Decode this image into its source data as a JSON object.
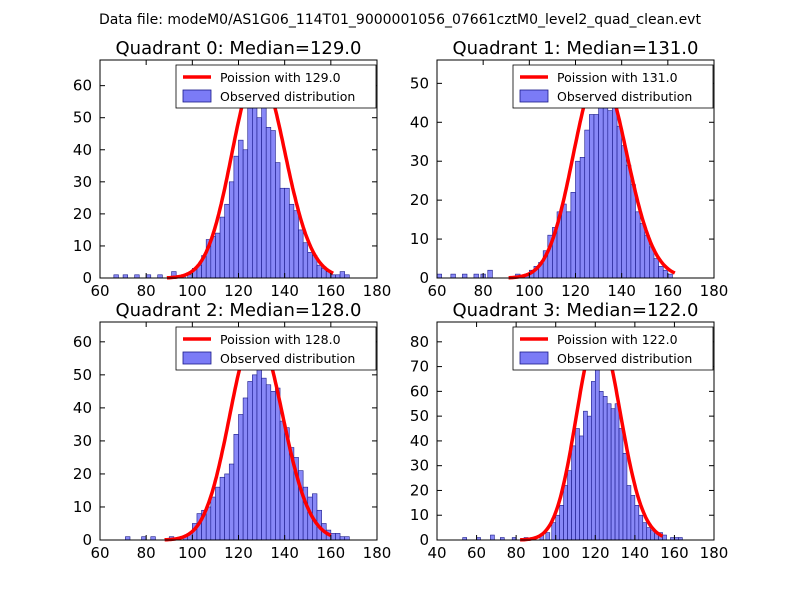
{
  "suptitle": "Data file: modeM0/AS1G06_114T01_9000001056_07661cztM0_level2_quad_clean.evt",
  "colors": {
    "bar_fill": "#7b7bf6",
    "bar_edge": "#1a1a8a",
    "curve": "#ff0000"
  },
  "chart_data": [
    {
      "type": "bar",
      "title": "Quadrant 0: Median=129.0",
      "median": 129.0,
      "poisson_amplitude": 65,
      "legend": [
        "Poission with 129.0",
        "Observed distribution"
      ],
      "xlim": [
        60,
        180
      ],
      "ylim": [
        0,
        68
      ],
      "xticks": [
        60,
        80,
        100,
        120,
        140,
        160,
        180
      ],
      "yticks": [
        0,
        10,
        20,
        30,
        40,
        50,
        60
      ],
      "bins": [
        [
          66,
          1
        ],
        [
          70,
          1
        ],
        [
          75,
          1
        ],
        [
          80,
          1
        ],
        [
          85,
          1
        ],
        [
          91,
          2
        ],
        [
          95,
          1
        ],
        [
          98,
          1
        ],
        [
          100,
          3
        ],
        [
          102,
          4
        ],
        [
          104,
          7
        ],
        [
          106,
          12
        ],
        [
          108,
          13
        ],
        [
          110,
          14
        ],
        [
          112,
          19
        ],
        [
          114,
          23
        ],
        [
          116,
          30
        ],
        [
          118,
          38
        ],
        [
          120,
          43
        ],
        [
          122,
          40
        ],
        [
          124,
          53
        ],
        [
          126,
          54
        ],
        [
          128,
          50
        ],
        [
          130,
          60
        ],
        [
          132,
          47
        ],
        [
          134,
          46
        ],
        [
          136,
          36
        ],
        [
          138,
          28
        ],
        [
          140,
          28
        ],
        [
          142,
          23
        ],
        [
          144,
          21
        ],
        [
          146,
          15
        ],
        [
          148,
          11
        ],
        [
          150,
          8
        ],
        [
          152,
          7
        ],
        [
          154,
          4
        ],
        [
          156,
          3
        ],
        [
          158,
          2
        ],
        [
          160,
          1
        ],
        [
          162,
          1
        ],
        [
          164,
          2
        ],
        [
          166,
          1
        ]
      ]
    },
    {
      "type": "bar",
      "title": "Quadrant 1: Median=131.0",
      "median": 131.0,
      "poisson_amplitude": 53,
      "legend": [
        "Poission with 131.0",
        "Observed distribution"
      ],
      "xlim": [
        60,
        180
      ],
      "ylim": [
        0,
        56
      ],
      "xticks": [
        60,
        80,
        100,
        120,
        140,
        160,
        180
      ],
      "yticks": [
        0,
        10,
        20,
        30,
        40,
        50
      ],
      "bins": [
        [
          60,
          1
        ],
        [
          66,
          1
        ],
        [
          71,
          1
        ],
        [
          76,
          1
        ],
        [
          79,
          1
        ],
        [
          82,
          2
        ],
        [
          94,
          1
        ],
        [
          98,
          1
        ],
        [
          100,
          2
        ],
        [
          102,
          3
        ],
        [
          104,
          4
        ],
        [
          106,
          7
        ],
        [
          108,
          11
        ],
        [
          110,
          13
        ],
        [
          112,
          17
        ],
        [
          114,
          19
        ],
        [
          116,
          17
        ],
        [
          118,
          22
        ],
        [
          120,
          30
        ],
        [
          122,
          31
        ],
        [
          124,
          38
        ],
        [
          126,
          42
        ],
        [
          128,
          42
        ],
        [
          130,
          45
        ],
        [
          132,
          48
        ],
        [
          134,
          43
        ],
        [
          136,
          46
        ],
        [
          138,
          39
        ],
        [
          140,
          34
        ],
        [
          142,
          29
        ],
        [
          144,
          24
        ],
        [
          146,
          17
        ],
        [
          148,
          14
        ],
        [
          150,
          11
        ],
        [
          152,
          8
        ],
        [
          154,
          5
        ],
        [
          156,
          3
        ],
        [
          158,
          2
        ],
        [
          160,
          1
        ]
      ]
    },
    {
      "type": "bar",
      "title": "Quadrant 2: Median=128.0",
      "median": 128.0,
      "poisson_amplitude": 63,
      "legend": [
        "Poission with 128.0",
        "Observed distribution"
      ],
      "xlim": [
        60,
        180
      ],
      "ylim": [
        0,
        66
      ],
      "xticks": [
        60,
        80,
        100,
        120,
        140,
        160,
        180
      ],
      "yticks": [
        0,
        10,
        20,
        30,
        40,
        50,
        60
      ],
      "bins": [
        [
          71,
          1
        ],
        [
          78,
          1
        ],
        [
          82,
          1
        ],
        [
          90,
          1
        ],
        [
          96,
          1
        ],
        [
          98,
          2
        ],
        [
          100,
          5
        ],
        [
          102,
          8
        ],
        [
          104,
          9
        ],
        [
          106,
          10
        ],
        [
          108,
          13
        ],
        [
          110,
          16
        ],
        [
          112,
          19
        ],
        [
          114,
          20
        ],
        [
          116,
          23
        ],
        [
          118,
          32
        ],
        [
          120,
          38
        ],
        [
          122,
          43
        ],
        [
          124,
          48
        ],
        [
          126,
          50
        ],
        [
          128,
          56
        ],
        [
          130,
          49
        ],
        [
          132,
          47
        ],
        [
          134,
          45
        ],
        [
          136,
          46
        ],
        [
          138,
          36
        ],
        [
          140,
          34
        ],
        [
          142,
          28
        ],
        [
          144,
          25
        ],
        [
          146,
          21
        ],
        [
          148,
          16
        ],
        [
          150,
          13
        ],
        [
          152,
          14
        ],
        [
          154,
          9
        ],
        [
          156,
          5
        ],
        [
          158,
          3
        ],
        [
          160,
          2
        ],
        [
          162,
          2
        ],
        [
          164,
          1
        ],
        [
          166,
          1
        ]
      ]
    },
    {
      "type": "bar",
      "title": "Quadrant 3: Median=122.0",
      "median": 122.0,
      "poisson_amplitude": 84,
      "legend": [
        "Poission with 122.0",
        "Observed distribution"
      ],
      "xlim": [
        40,
        180
      ],
      "ylim": [
        0,
        88
      ],
      "xticks": [
        40,
        60,
        80,
        100,
        120,
        140,
        160,
        180
      ],
      "yticks": [
        0,
        10,
        20,
        30,
        40,
        50,
        60,
        70,
        80
      ],
      "bins": [
        [
          53,
          1
        ],
        [
          60,
          1
        ],
        [
          67,
          2
        ],
        [
          72,
          1
        ],
        [
          78,
          1
        ],
        [
          84,
          1
        ],
        [
          88,
          1
        ],
        [
          92,
          2
        ],
        [
          95,
          3
        ],
        [
          98,
          7
        ],
        [
          100,
          10
        ],
        [
          102,
          14
        ],
        [
          104,
          22
        ],
        [
          106,
          28
        ],
        [
          108,
          38
        ],
        [
          110,
          45
        ],
        [
          112,
          42
        ],
        [
          114,
          52
        ],
        [
          116,
          50
        ],
        [
          118,
          64
        ],
        [
          120,
          75
        ],
        [
          122,
          60
        ],
        [
          124,
          58
        ],
        [
          126,
          55
        ],
        [
          128,
          53
        ],
        [
          130,
          55
        ],
        [
          132,
          45
        ],
        [
          134,
          35
        ],
        [
          136,
          22
        ],
        [
          138,
          18
        ],
        [
          140,
          14
        ],
        [
          142,
          10
        ],
        [
          144,
          7
        ],
        [
          146,
          5
        ],
        [
          148,
          4
        ],
        [
          150,
          3
        ],
        [
          152,
          3
        ],
        [
          154,
          2
        ],
        [
          158,
          1
        ],
        [
          160,
          1
        ],
        [
          162,
          1
        ]
      ]
    }
  ]
}
